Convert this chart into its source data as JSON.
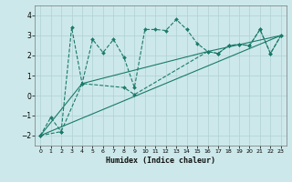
{
  "bg_color": "#cce8ea",
  "grid_color": "#b0d0d2",
  "line_color": "#1a7a6a",
  "xlabel": "Humidex (Indice chaleur)",
  "ylim": [
    -2.5,
    4.5
  ],
  "xlim": [
    -0.5,
    23.5
  ],
  "yticks": [
    -2,
    -1,
    0,
    1,
    2,
    3,
    4
  ],
  "xticks": [
    0,
    1,
    2,
    3,
    4,
    5,
    6,
    7,
    8,
    9,
    10,
    11,
    12,
    13,
    14,
    15,
    16,
    17,
    18,
    19,
    20,
    21,
    22,
    23
  ],
  "lines": [
    {
      "x": [
        0,
        1,
        2,
        3,
        4,
        5,
        6,
        7,
        8,
        9,
        10,
        11,
        12,
        13,
        14,
        15,
        16,
        17,
        18,
        19,
        20,
        21,
        22,
        23
      ],
      "y": [
        -2.0,
        -1.1,
        -1.8,
        3.4,
        0.6,
        2.8,
        2.15,
        2.8,
        1.9,
        0.4,
        3.3,
        3.3,
        3.25,
        3.8,
        3.3,
        2.6,
        2.2,
        2.1,
        2.5,
        2.55,
        2.5,
        3.3,
        2.1,
        3.0
      ],
      "marker": true
    },
    {
      "x": [
        0,
        2,
        4,
        8,
        9,
        16,
        17,
        18,
        19,
        20,
        21,
        22,
        23
      ],
      "y": [
        -2.0,
        -1.8,
        0.6,
        0.4,
        0.05,
        2.2,
        2.1,
        2.5,
        2.55,
        2.5,
        3.3,
        2.1,
        3.0
      ],
      "marker": true
    },
    {
      "x": [
        0,
        23
      ],
      "y": [
        -2.0,
        3.0
      ],
      "marker": false
    },
    {
      "x": [
        0,
        4,
        16,
        23
      ],
      "y": [
        -2.0,
        0.6,
        2.2,
        3.0
      ],
      "marker": false
    }
  ]
}
